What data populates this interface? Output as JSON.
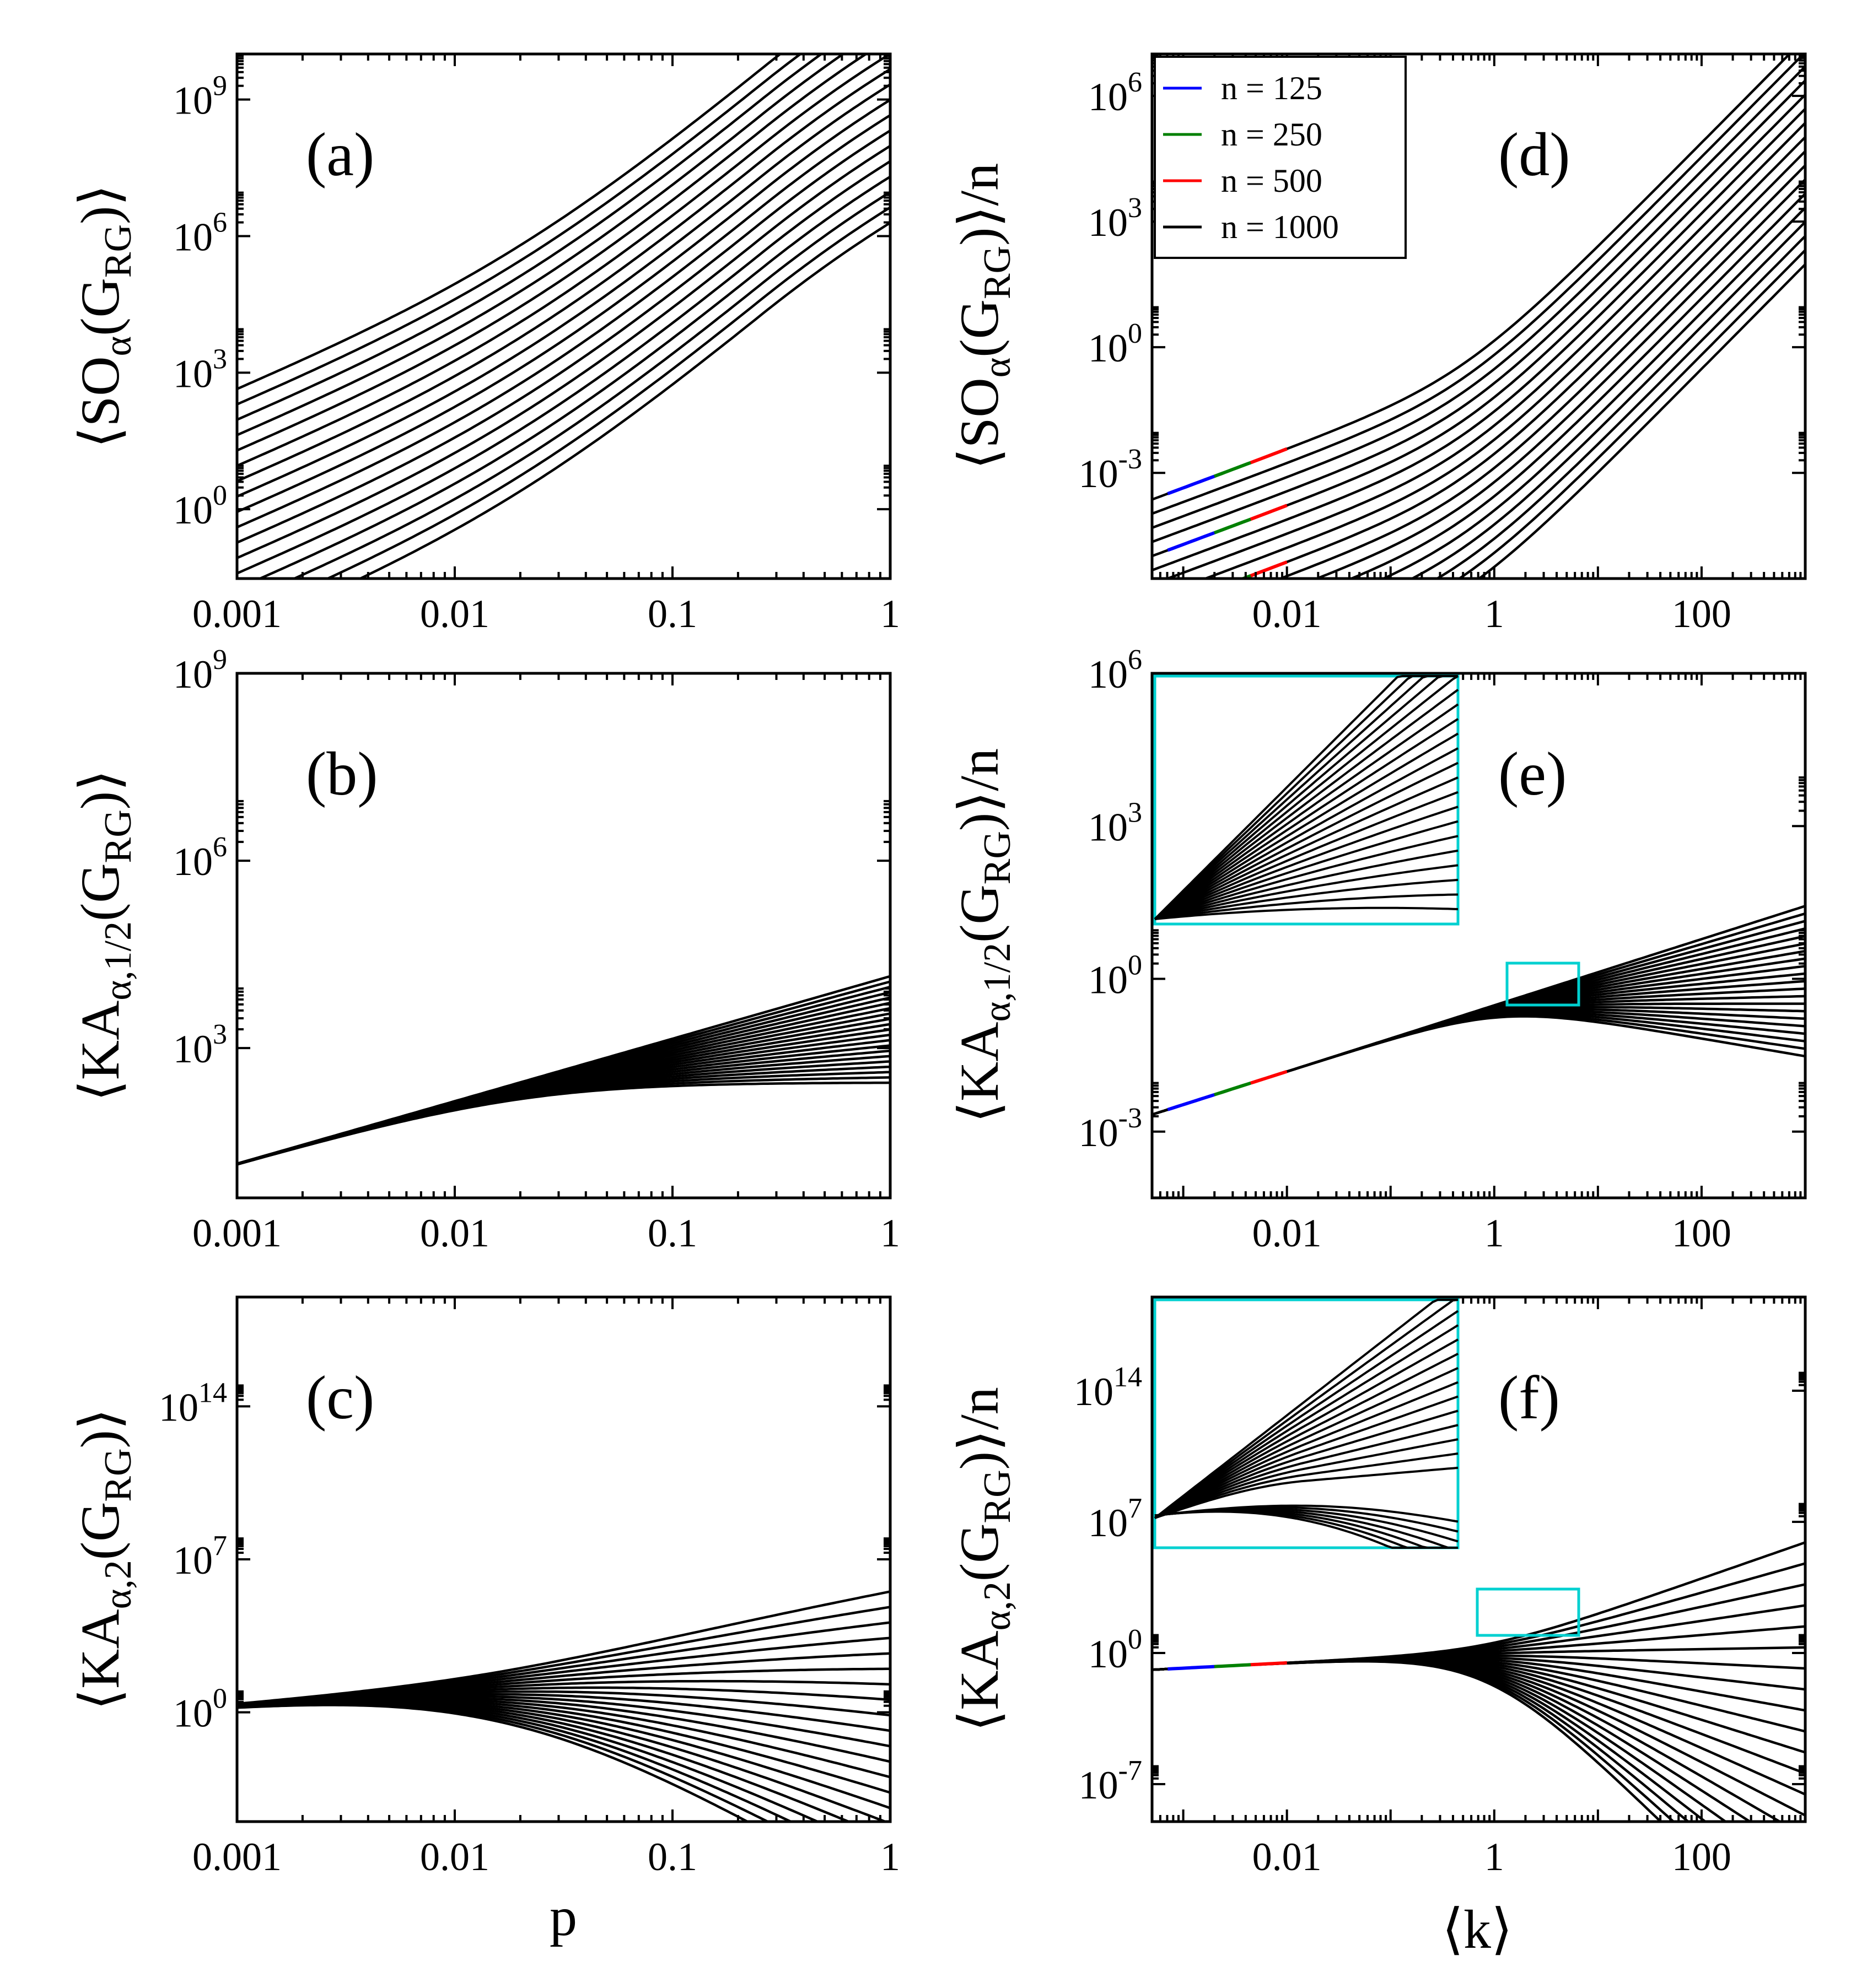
{
  "chart_data": [
    {
      "panel": "(a)",
      "type": "line",
      "scale": "log-log",
      "xlabel": "",
      "ylabel": "⟨SO_α(G_RG)⟩",
      "xlim": [
        0.001,
        1
      ],
      "ylim": [
        0.03,
        10000000000.0
      ],
      "xticks": [
        "0.001",
        "0.01",
        "0.1",
        "1"
      ],
      "yticks": [
        {
          "v": 1,
          "t": "10^0"
        },
        {
          "v": 1000,
          "t": "10^3"
        },
        {
          "v": 1000000.0,
          "t": "10^6"
        },
        {
          "v": 1000000000.0,
          "t": "10^9"
        }
      ],
      "family": {
        "model": "so",
        "count": 17,
        "shift_min": -3.0,
        "shift_max": 2.4
      }
    },
    {
      "panel": "(d)",
      "type": "line",
      "scale": "log-log",
      "xlabel": "⟨k⟩",
      "ylabel": "⟨SO_α(G_RG)⟩/n",
      "xlim": [
        0.0005,
        1000
      ],
      "ylim": [
        3e-06,
        10000000.0
      ],
      "xticks": [
        "0.01",
        "1",
        "100"
      ],
      "yticks": [
        {
          "v": 0.001,
          "t": "10^-3"
        },
        {
          "v": 1,
          "t": "10^0"
        },
        {
          "v": 1000,
          "t": "10^3"
        },
        {
          "v": 1000000.0,
          "t": "10^6"
        }
      ],
      "legend": {
        "placement": "top-left",
        "entries": [
          {
            "label": "n = 125",
            "color": "#0000ff"
          },
          {
            "label": "n = 250",
            "color": "#008000"
          },
          {
            "label": "n = 500",
            "color": "#ff0000"
          },
          {
            "label": "n = 1000",
            "color": "#000000"
          }
        ]
      },
      "family": {
        "model": "so_k",
        "count": 17,
        "shift_min": -3.0,
        "shift_max": 2.4
      }
    },
    {
      "panel": "(b)",
      "type": "line",
      "scale": "log-log",
      "xlabel": "",
      "ylabel": "⟨KA_α,1/2(G_RG)⟩",
      "xlim": [
        0.001,
        1
      ],
      "ylim": [
        4,
        1000000000.0
      ],
      "xticks": [
        "0.001",
        "0.01",
        "0.1",
        "1"
      ],
      "yticks": [
        {
          "v": 1000,
          "t": "10^3"
        },
        {
          "v": 1000000.0,
          "t": "10^6"
        },
        {
          "v": 1000000000.0,
          "t": "10^9"
        }
      ],
      "family": {
        "model": "ka_half",
        "count": 21,
        "exp_min": 0.0,
        "exp_max": 1.0
      }
    },
    {
      "panel": "(e)",
      "type": "line",
      "scale": "log-log",
      "xlabel": "⟨k⟩",
      "ylabel": "⟨KA_α,1/2(G_RG)⟩/n",
      "xlim": [
        0.0005,
        1000
      ],
      "ylim": [
        5e-05,
        1000000.0
      ],
      "xticks": [
        "0.01",
        "1",
        "100"
      ],
      "yticks": [
        {
          "v": 0.001,
          "t": "10^-3"
        },
        {
          "v": 1,
          "t": "10^0"
        },
        {
          "v": 1000,
          "t": "10^3"
        },
        {
          "v": 1000000.0,
          "t": "10^6"
        }
      ],
      "family": {
        "model": "ka_half_k",
        "count": 21,
        "exp_min": 0.0,
        "exp_max": 1.0
      }
    },
    {
      "panel": "(c)",
      "type": "line",
      "scale": "log-log",
      "xlabel": "p",
      "ylabel": "⟨KA_α,2(G_RG)⟩",
      "xlim": [
        0.001,
        1
      ],
      "ylim": [
        1e-05,
        1e+19
      ],
      "xticks": [
        "0.001",
        "0.01",
        "0.1",
        "1"
      ],
      "yticks": [
        {
          "v": 1,
          "t": "10^0"
        },
        {
          "v": 10000000.0,
          "t": "10^7"
        },
        {
          "v": 100000000000000.0,
          "t": "10^14"
        }
      ],
      "family": {
        "model": "ka_two",
        "count": 21,
        "exp_min": -0.9,
        "exp_max": 1.55
      }
    },
    {
      "panel": "(f)",
      "type": "line",
      "scale": "log-log",
      "xlabel": "⟨k⟩",
      "ylabel": "⟨KA_α,2(G_RG)⟩/n",
      "xlim": [
        0.0005,
        1000
      ],
      "ylim": [
        1e-09,
        1e+19
      ],
      "xticks": [
        "0.01",
        "1",
        "100"
      ],
      "yticks": [
        {
          "v": 1e-07,
          "t": "10^-7"
        },
        {
          "v": 1,
          "t": "10^0"
        },
        {
          "v": 10000000.0,
          "t": "10^7"
        },
        {
          "v": 100000000000000.0,
          "t": "10^14"
        }
      ],
      "family": {
        "model": "ka_two_k",
        "count": 21,
        "exp_min": -0.9,
        "exp_max": 1.55
      }
    }
  ]
}
